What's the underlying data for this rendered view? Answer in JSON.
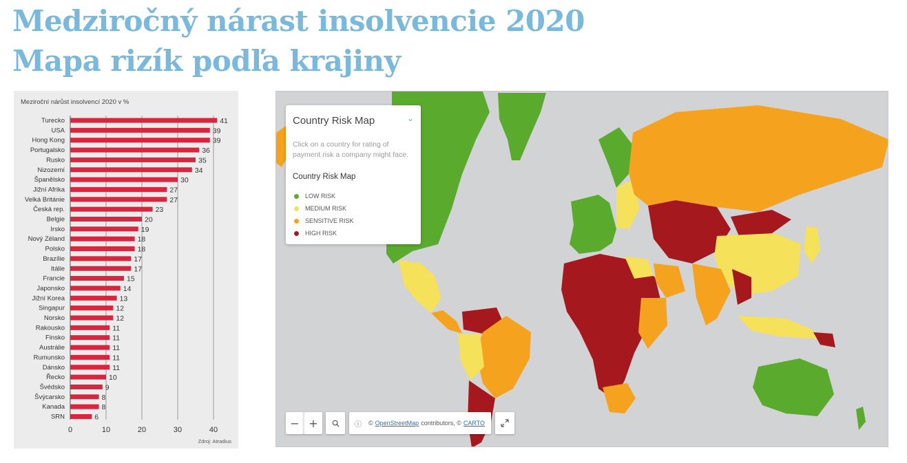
{
  "page": {
    "title_line1": "Medziročný nárast insolvencie 2020",
    "title_line2": "Mapa rizík podľa krajiny",
    "title_color": "#7ab8dc"
  },
  "chart_data": {
    "type": "bar",
    "orientation": "horizontal",
    "title": "Meziroční nárůst insolvencí 2020 v %",
    "source": "Zdroj: Atradius",
    "bar_color": "#d9263f",
    "xlim": [
      0,
      40
    ],
    "xticks": [
      0,
      10,
      20,
      30,
      40
    ],
    "grid": true,
    "categories": [
      "Turecko",
      "USA",
      "Hong Kong",
      "Portugalsko",
      "Rusko",
      "Nizozemí",
      "Španělsko",
      "Jižní Afrika",
      "Velká Británie",
      "Česká rep.",
      "Belgie",
      "Irsko",
      "Nový Zéland",
      "Polsko",
      "Brazílie",
      "Itálie",
      "Francie",
      "Japonsko",
      "Jižní Korea",
      "Singapur",
      "Norsko",
      "Rakousko",
      "Finsko",
      "Austrálie",
      "Rumunsko",
      "Dánsko",
      "Řecko",
      "Švédsko",
      "Švýcarsko",
      "Kanada",
      "SRN"
    ],
    "values": [
      41,
      39,
      39,
      36,
      35,
      34,
      30,
      27,
      27,
      23,
      20,
      19,
      18,
      18,
      17,
      17,
      15,
      14,
      13,
      12,
      12,
      11,
      11,
      11,
      11,
      11,
      10,
      9,
      8,
      8,
      6
    ]
  },
  "map": {
    "legend_title": "Country Risk Map",
    "chevron_icon": "chevron-down-icon",
    "description": "Click on a country for rating of payment risk a company might face.",
    "legend_subtitle": "Country Risk Map",
    "legend_items": [
      {
        "label": "LOW RISK",
        "color": "#5aaa2e"
      },
      {
        "label": "MEDIUM RISK",
        "color": "#f5e15a"
      },
      {
        "label": "SENSITIVE RISK",
        "color": "#f5a21e"
      },
      {
        "label": "HIGH RISK",
        "color": "#a5191e"
      }
    ],
    "ocean_color": "#d2d3d5",
    "controls": {
      "zoom_out": "−",
      "zoom_in": "+",
      "search_icon": "search-icon",
      "info_icon": "info-icon",
      "fullscreen_icon": "fullscreen-icon"
    },
    "attribution": {
      "prefix": "©",
      "osm_link": "OpenStreetMap",
      "middle": "contributors, ©",
      "carto_link": "CARTO"
    }
  }
}
